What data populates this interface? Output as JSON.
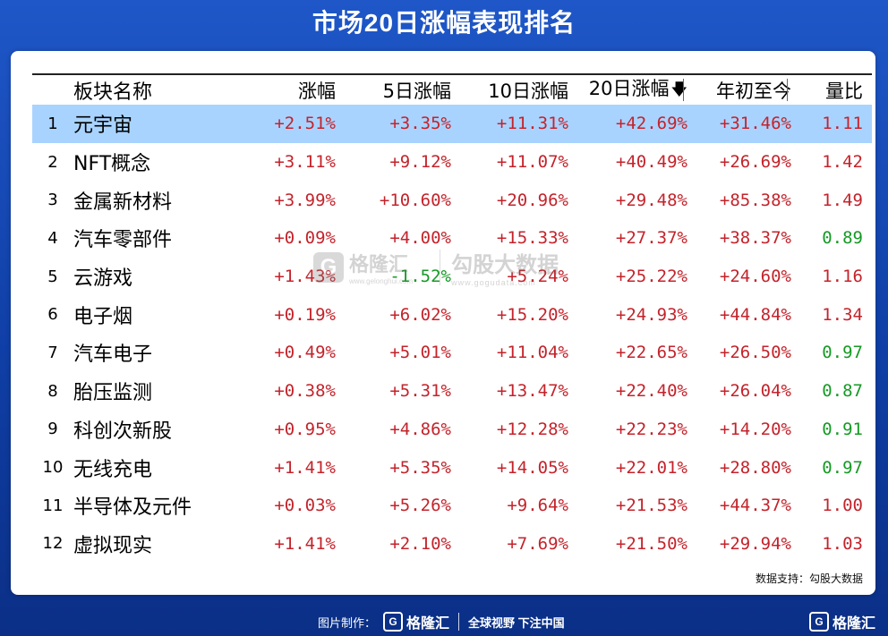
{
  "title": "市场20日涨幅表现排名",
  "columns": {
    "name": "板块名称",
    "chg": "涨幅",
    "chg5": "5日涨幅",
    "chg10": "10日涨幅",
    "chg20": "20日涨幅",
    "ytd": "年初至今",
    "vol_ratio": "量比"
  },
  "sort_icon": "arrow-down-icon",
  "rows": [
    {
      "idx": "1",
      "name": "元宇宙",
      "chg": "+2.51%",
      "chg5": "+3.35%",
      "chg10": "+11.31%",
      "chg20": "+42.69%",
      "ytd": "+31.46%",
      "vr": "1.11",
      "selected": true
    },
    {
      "idx": "2",
      "name": "NFT概念",
      "chg": "+3.11%",
      "chg5": "+9.12%",
      "chg10": "+11.07%",
      "chg20": "+40.49%",
      "ytd": "+26.69%",
      "vr": "1.42"
    },
    {
      "idx": "3",
      "name": "金属新材料",
      "chg": "+3.99%",
      "chg5": "+10.60%",
      "chg10": "+20.96%",
      "chg20": "+29.48%",
      "ytd": "+85.38%",
      "vr": "1.49"
    },
    {
      "idx": "4",
      "name": "汽车零部件",
      "chg": "+0.09%",
      "chg5": "+4.00%",
      "chg10": "+15.33%",
      "chg20": "+27.37%",
      "ytd": "+38.37%",
      "vr": "0.89"
    },
    {
      "idx": "5",
      "name": "云游戏",
      "chg": "+1.43%",
      "chg5": "-1.52%",
      "chg10": "+5.24%",
      "chg20": "+25.22%",
      "ytd": "+24.60%",
      "vr": "1.16"
    },
    {
      "idx": "6",
      "name": "电子烟",
      "chg": "+0.19%",
      "chg5": "+6.02%",
      "chg10": "+15.20%",
      "chg20": "+24.93%",
      "ytd": "+44.84%",
      "vr": "1.34"
    },
    {
      "idx": "7",
      "name": "汽车电子",
      "chg": "+0.49%",
      "chg5": "+5.01%",
      "chg10": "+11.04%",
      "chg20": "+22.65%",
      "ytd": "+26.50%",
      "vr": "0.97"
    },
    {
      "idx": "8",
      "name": "胎压监测",
      "chg": "+0.38%",
      "chg5": "+5.31%",
      "chg10": "+13.47%",
      "chg20": "+22.40%",
      "ytd": "+26.04%",
      "vr": "0.87"
    },
    {
      "idx": "9",
      "name": "科创次新股",
      "chg": "+0.95%",
      "chg5": "+4.86%",
      "chg10": "+12.28%",
      "chg20": "+22.23%",
      "ytd": "+14.20%",
      "vr": "0.91"
    },
    {
      "idx": "10",
      "name": "无线充电",
      "chg": "+1.41%",
      "chg5": "+5.35%",
      "chg10": "+14.05%",
      "chg20": "+22.01%",
      "ytd": "+28.80%",
      "vr": "0.97"
    },
    {
      "idx": "11",
      "name": "半导体及元件",
      "chg": "+0.03%",
      "chg5": "+5.26%",
      "chg10": "+9.64%",
      "chg20": "+21.53%",
      "ytd": "+44.37%",
      "vr": "1.00"
    },
    {
      "idx": "12",
      "name": "虚拟现实",
      "chg": "+1.41%",
      "chg5": "+2.10%",
      "chg10": "+7.69%",
      "chg20": "+21.50%",
      "ytd": "+29.94%",
      "vr": "1.03"
    }
  ],
  "source": "数据支持：勾股大数据",
  "watermark": {
    "logo": "G",
    "brand": "格隆汇",
    "url": "www.gelonghui.com",
    "brand2": "勾股大数据",
    "url2": "www.gogudata.com"
  },
  "footer": {
    "made_by": "图片制作：",
    "logo": "G",
    "brand": "格隆汇",
    "slogan": "全球视野 下注中国",
    "right_brand": "格隆汇"
  },
  "colors": {
    "positive": "#c4232b",
    "negative": "#159a24",
    "selected_row": "#a9d3ff",
    "background": "#1f57c8"
  }
}
